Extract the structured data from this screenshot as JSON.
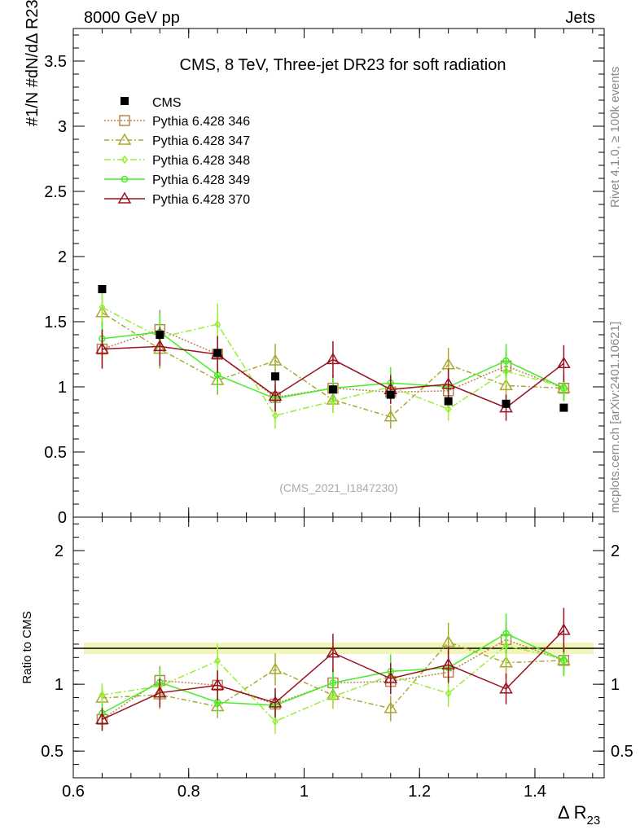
{
  "header": {
    "left": "8000 GeV pp",
    "right": "Jets"
  },
  "side_labels": {
    "rivet": "Rivet 4.1.0, ≥ 100k events",
    "mcplots": "mcplots.cern.ch [arXiv:2401.10621]"
  },
  "chart_data": {
    "type": "scatter",
    "title": "CMS, 8 TeV, Three-jet DR23 for soft radiation",
    "analysis_id": "(CMS_2021_I1847230)",
    "xlabel": "Δ R",
    "xlabel_sub": "23",
    "ylabel": "#1/N #dN/dΔ R23",
    "ratio_ylabel": "Ratio to CMS",
    "xlim": [
      0.6,
      1.52
    ],
    "ylim": [
      0,
      3.75
    ],
    "ratio_ylim": [
      0.3,
      2.25
    ],
    "x_ticks": [
      0.6,
      0.8,
      1.0,
      1.2,
      1.4
    ],
    "x_tick_labels": [
      "0.6",
      "0.8",
      "1",
      "1.2",
      "1.4"
    ],
    "y_ticks": [
      0,
      0.5,
      1,
      1.5,
      2,
      2.5,
      3,
      3.5
    ],
    "y_tick_labels": [
      "0",
      "0.5",
      "1",
      "1.5",
      "2",
      "2.5",
      "3",
      "3.5"
    ],
    "ratio_ticks": [
      0.5,
      1,
      2
    ],
    "ratio_tick_labels": [
      "0.5",
      "1",
      "2"
    ],
    "x": [
      0.65,
      0.75,
      0.85,
      0.95,
      1.05,
      1.15,
      1.25,
      1.35,
      1.45
    ],
    "data": {
      "name": "CMS",
      "values": [
        1.75,
        1.4,
        1.26,
        1.08,
        0.98,
        0.94,
        0.89,
        0.87,
        0.84
      ]
    },
    "series": [
      {
        "name": "Pythia 6.428 346",
        "color": "#b5854f",
        "marker": "square",
        "dash": "2,2",
        "values": [
          1.29,
          1.44,
          1.25,
          0.92,
          0.99,
          0.96,
          0.97,
          1.16,
          0.99
        ],
        "err": [
          0.15,
          0.15,
          0.13,
          0.09,
          0.1,
          0.09,
          0.1,
          0.12,
          0.09
        ]
      },
      {
        "name": "Pythia 6.428 347",
        "color": "#a8a832",
        "marker": "triangle",
        "dash": "6,3,2,3",
        "values": [
          1.57,
          1.29,
          1.05,
          1.2,
          0.9,
          0.77,
          1.17,
          1.01,
          0.99
        ],
        "err": [
          0.15,
          0.15,
          0.11,
          0.13,
          0.1,
          0.09,
          0.13,
          0.1,
          0.09
        ]
      },
      {
        "name": "Pythia 6.428 348",
        "color": "#99ee33",
        "marker": "diamond",
        "dash": "8,3,2,3",
        "values": [
          1.61,
          1.38,
          1.48,
          0.78,
          0.89,
          1.0,
          0.83,
          1.12,
          1.0
        ],
        "err": [
          0.15,
          0.15,
          0.16,
          0.1,
          0.09,
          0.1,
          0.09,
          0.12,
          0.1
        ]
      },
      {
        "name": "Pythia 6.428 349",
        "color": "#44ee22",
        "marker": "circle",
        "dash": "",
        "values": [
          1.37,
          1.42,
          1.09,
          0.91,
          0.99,
          1.03,
          1.0,
          1.2,
          0.99
        ],
        "err": [
          0.13,
          0.14,
          0.11,
          0.1,
          0.1,
          0.12,
          0.11,
          0.13,
          0.1
        ]
      },
      {
        "name": "Pythia 6.428 370",
        "color": "#991122",
        "marker": "triangle",
        "dash": "",
        "values": [
          1.29,
          1.31,
          1.25,
          0.93,
          1.21,
          0.98,
          1.02,
          0.84,
          1.18
        ],
        "err": [
          0.15,
          0.15,
          0.14,
          0.12,
          0.14,
          0.11,
          0.12,
          0.1,
          0.14
        ]
      }
    ],
    "legend_position": "top-left"
  }
}
